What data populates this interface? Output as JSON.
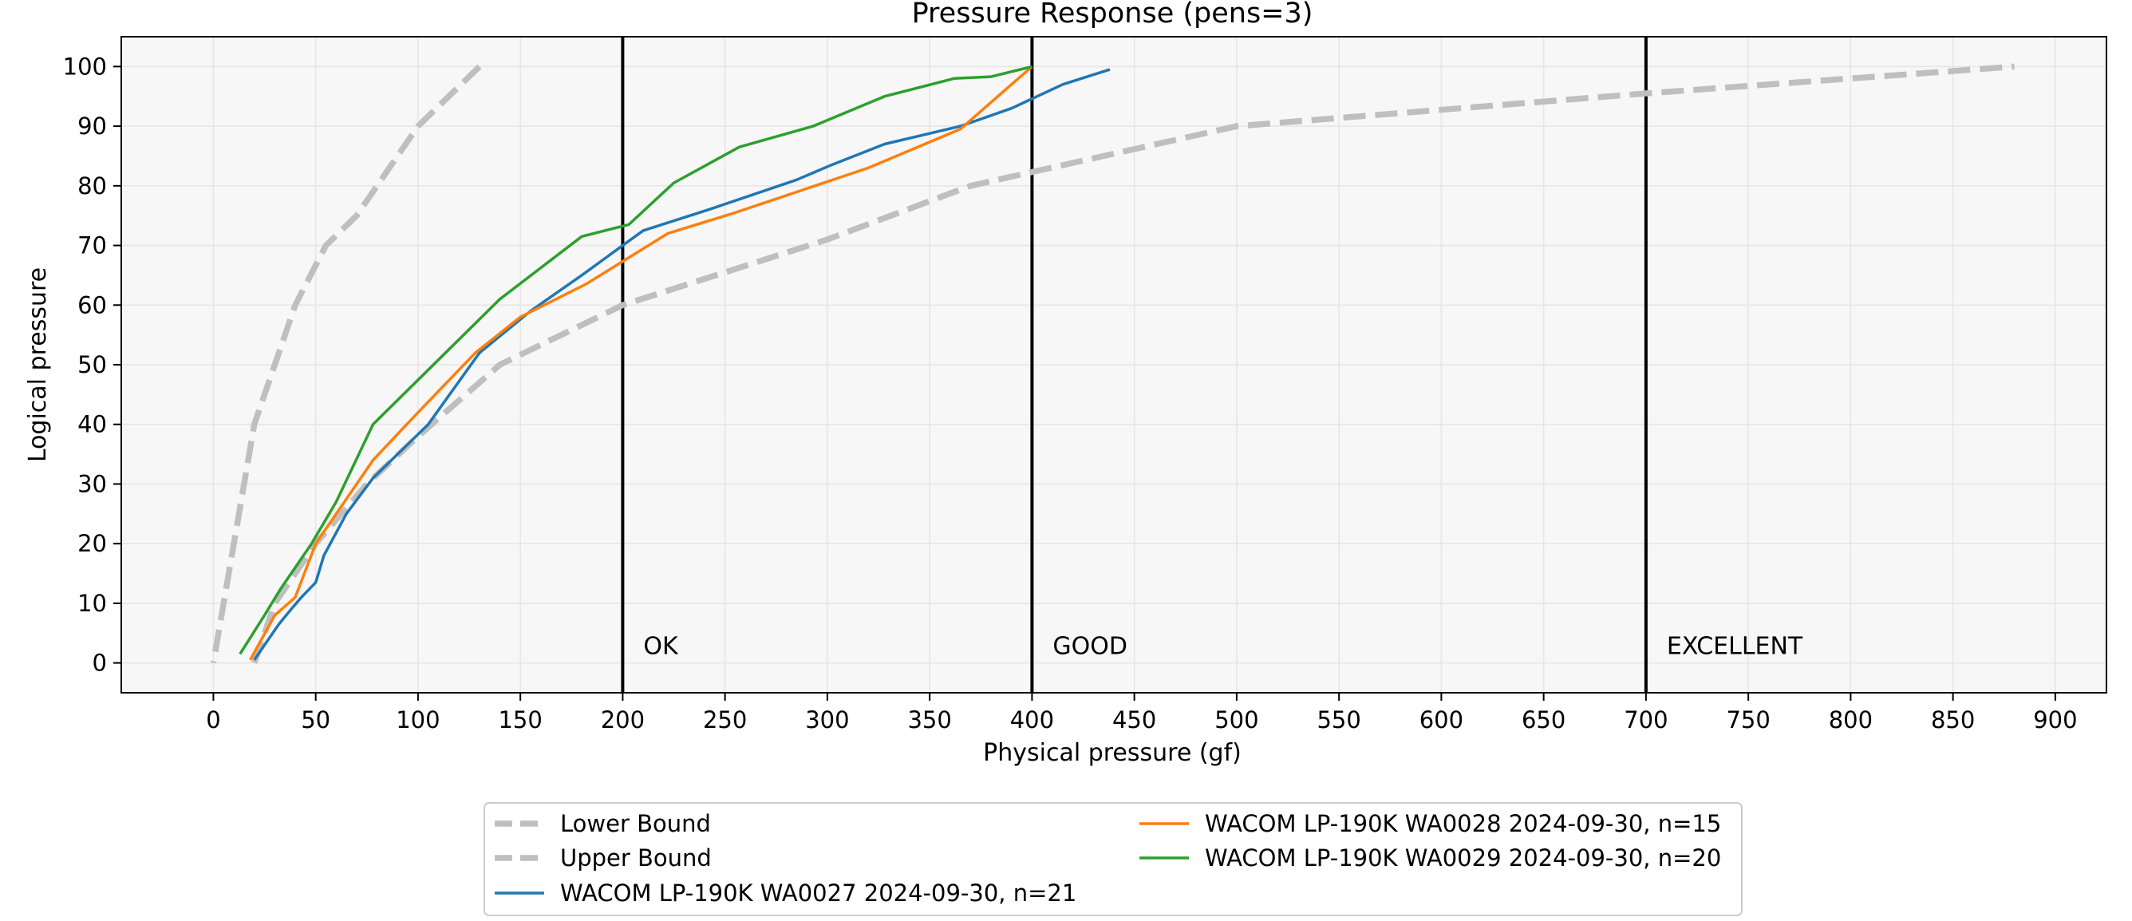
{
  "chart_data": {
    "type": "line",
    "title": "Pressure Response (pens=3)",
    "xlabel": "Physical pressure (gf)",
    "ylabel": "Logical pressure",
    "xlim": [
      -45,
      925
    ],
    "ylim": [
      -5,
      105
    ],
    "xticks": [
      0,
      50,
      100,
      150,
      200,
      250,
      300,
      350,
      400,
      450,
      500,
      550,
      600,
      650,
      700,
      750,
      800,
      850,
      900
    ],
    "yticks": [
      0,
      10,
      20,
      30,
      40,
      50,
      60,
      70,
      80,
      90,
      100
    ],
    "grid": true,
    "legend_position": "bottom-center, below axes",
    "thresholds": [
      {
        "x": 200,
        "label": "OK"
      },
      {
        "x": 400,
        "label": "GOOD"
      },
      {
        "x": 700,
        "label": "EXCELLENT"
      }
    ],
    "series": [
      {
        "name": "Lower Bound",
        "style": "dashed",
        "color": "#bfbfbf",
        "points": [
          [
            130,
            100
          ],
          [
            100,
            90
          ],
          [
            80,
            80
          ],
          [
            70,
            75
          ],
          [
            55,
            70
          ],
          [
            40,
            60
          ],
          [
            30,
            50
          ],
          [
            20,
            40
          ],
          [
            10,
            20
          ],
          [
            0,
            0
          ]
        ]
      },
      {
        "name": "Upper Bound",
        "style": "dashed",
        "color": "#bfbfbf",
        "points": [
          [
            20,
            0
          ],
          [
            30,
            10
          ],
          [
            50,
            20
          ],
          [
            75,
            30
          ],
          [
            100,
            38
          ],
          [
            140,
            50
          ],
          [
            200,
            60
          ],
          [
            300,
            71
          ],
          [
            370,
            80
          ],
          [
            500,
            90
          ],
          [
            700,
            95.5
          ],
          [
            880,
            100
          ]
        ]
      },
      {
        "name": "WACOM LP-190K WA0027 2024-09-30, n=21",
        "style": "solid",
        "color": "#1f77b4",
        "points": [
          [
            20,
            0.5
          ],
          [
            25,
            3
          ],
          [
            32,
            6.5
          ],
          [
            38,
            9
          ],
          [
            43,
            11
          ],
          [
            50,
            13.5
          ],
          [
            54,
            18
          ],
          [
            65,
            25
          ],
          [
            78,
            31
          ],
          [
            93,
            36
          ],
          [
            105,
            40
          ],
          [
            130,
            52
          ],
          [
            155,
            59
          ],
          [
            180,
            65
          ],
          [
            210,
            72.5
          ],
          [
            242,
            76
          ],
          [
            285,
            81
          ],
          [
            302,
            83.5
          ],
          [
            328,
            87
          ],
          [
            365,
            90
          ],
          [
            390,
            93
          ],
          [
            415,
            97
          ],
          [
            438,
            99.5
          ]
        ]
      },
      {
        "name": "WACOM LP-190K WA0028 2024-09-30, n=15",
        "style": "solid",
        "color": "#ff7f0e",
        "points": [
          [
            18,
            0.5
          ],
          [
            30,
            8
          ],
          [
            40,
            11
          ],
          [
            50,
            20
          ],
          [
            78,
            34
          ],
          [
            100,
            42
          ],
          [
            128,
            52
          ],
          [
            150,
            58
          ],
          [
            182,
            63.5
          ],
          [
            222,
            72
          ],
          [
            255,
            75.5
          ],
          [
            320,
            83
          ],
          [
            365,
            89.5
          ],
          [
            385,
            95.5
          ],
          [
            400,
            100
          ]
        ]
      },
      {
        "name": "WACOM LP-190K WA0029 2024-09-30, n=20",
        "style": "solid",
        "color": "#2ca02c",
        "points": [
          [
            13,
            1.5
          ],
          [
            25,
            8
          ],
          [
            33,
            12.5
          ],
          [
            48,
            20
          ],
          [
            60,
            27
          ],
          [
            78,
            40
          ],
          [
            140,
            61
          ],
          [
            180,
            71.5
          ],
          [
            203,
            73.5
          ],
          [
            225,
            80.5
          ],
          [
            257,
            86.5
          ],
          [
            293,
            90
          ],
          [
            328,
            95
          ],
          [
            362,
            98
          ],
          [
            380,
            98.3
          ],
          [
            400,
            100
          ]
        ]
      }
    ]
  },
  "legend": {
    "items": [
      {
        "label": "Lower Bound",
        "color": "#bfbfbf",
        "dash": true
      },
      {
        "label": "Upper Bound",
        "color": "#bfbfbf",
        "dash": true
      },
      {
        "label": "WACOM LP-190K WA0027 2024-09-30, n=21",
        "color": "#1f77b4",
        "dash": false
      },
      {
        "label": "WACOM LP-190K WA0028 2024-09-30, n=15",
        "color": "#ff7f0e",
        "dash": false
      },
      {
        "label": "WACOM LP-190K WA0029 2024-09-30, n=20",
        "color": "#2ca02c",
        "dash": false
      }
    ]
  }
}
